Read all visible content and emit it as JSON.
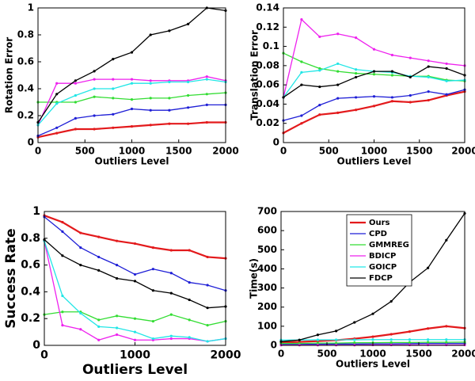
{
  "chart_data": [
    {
      "type": "line",
      "ylabel": "Rotation Error",
      "xlabel": "Outliers Level",
      "x": [
        0,
        200,
        400,
        600,
        800,
        1000,
        1200,
        1400,
        1600,
        1800,
        2000
      ],
      "xlim": [
        0,
        2000
      ],
      "xticks": [
        0,
        500,
        1000,
        1500,
        2000
      ],
      "ylim": [
        0,
        1
      ],
      "yticks": [
        0,
        0.2,
        0.4,
        0.6,
        0.8,
        1
      ],
      "series": [
        {
          "color": "#e31a1c",
          "values": [
            0.04,
            0.07,
            0.1,
            0.1,
            0.11,
            0.12,
            0.13,
            0.14,
            0.14,
            0.15,
            0.15
          ]
        },
        {
          "color": "#1f1fd6",
          "values": [
            0.05,
            0.11,
            0.18,
            0.2,
            0.21,
            0.25,
            0.24,
            0.24,
            0.26,
            0.28,
            0.28
          ]
        },
        {
          "color": "#33dd33",
          "values": [
            0.3,
            0.3,
            0.3,
            0.34,
            0.33,
            0.32,
            0.33,
            0.33,
            0.35,
            0.36,
            0.37
          ]
        },
        {
          "color": "#ee22ee",
          "values": [
            0.13,
            0.44,
            0.44,
            0.47,
            0.47,
            0.47,
            0.46,
            0.46,
            0.46,
            0.49,
            0.46
          ]
        },
        {
          "color": "#22e6e6",
          "values": [
            0.13,
            0.29,
            0.35,
            0.4,
            0.4,
            0.44,
            0.44,
            0.45,
            0.45,
            0.47,
            0.45
          ]
        },
        {
          "color": "#000000",
          "values": [
            0.15,
            0.36,
            0.46,
            0.53,
            0.62,
            0.67,
            0.8,
            0.83,
            0.88,
            1.0,
            0.98
          ]
        }
      ]
    },
    {
      "type": "line",
      "ylabel": "Translation Error",
      "xlabel": "Outliers Level",
      "x": [
        0,
        200,
        400,
        600,
        800,
        1000,
        1200,
        1400,
        1600,
        1800,
        2000
      ],
      "xlim": [
        0,
        2000
      ],
      "xticks": [
        0,
        500,
        1000,
        1500,
        2000
      ],
      "ylim": [
        0,
        0.14
      ],
      "yticks": [
        0,
        0.02,
        0.04,
        0.06,
        0.08,
        0.1,
        0.12,
        0.14
      ],
      "series": [
        {
          "color": "#e31a1c",
          "values": [
            0.01,
            0.02,
            0.029,
            0.031,
            0.034,
            0.038,
            0.043,
            0.042,
            0.044,
            0.049,
            0.053
          ]
        },
        {
          "color": "#1f1fd6",
          "values": [
            0.023,
            0.028,
            0.039,
            0.046,
            0.047,
            0.048,
            0.047,
            0.049,
            0.053,
            0.05,
            0.055
          ]
        },
        {
          "color": "#33dd33",
          "values": [
            0.093,
            0.084,
            0.077,
            0.074,
            0.072,
            0.071,
            0.07,
            0.069,
            0.069,
            0.065,
            0.064
          ]
        },
        {
          "color": "#ee22ee",
          "values": [
            0.047,
            0.128,
            0.11,
            0.113,
            0.109,
            0.097,
            0.091,
            0.088,
            0.085,
            0.082,
            0.08
          ]
        },
        {
          "color": "#22e6e6",
          "values": [
            0.047,
            0.073,
            0.075,
            0.082,
            0.076,
            0.074,
            0.073,
            0.069,
            0.068,
            0.064,
            0.065
          ]
        },
        {
          "color": "#000000",
          "values": [
            0.047,
            0.06,
            0.058,
            0.06,
            0.068,
            0.074,
            0.074,
            0.068,
            0.079,
            0.077,
            0.07
          ]
        }
      ]
    },
    {
      "type": "line",
      "ylabel": "Success Rate",
      "xlabel": "Outliers Level",
      "x": [
        0,
        200,
        400,
        600,
        800,
        1000,
        1200,
        1400,
        1600,
        1800,
        2000
      ],
      "xlim": [
        0,
        2000
      ],
      "xticks": [
        0,
        1000,
        2000
      ],
      "ylim": [
        0,
        1
      ],
      "yticks": [
        0,
        0.2,
        0.4,
        0.6,
        0.8,
        1
      ],
      "series": [
        {
          "color": "#e31a1c",
          "values": [
            0.97,
            0.92,
            0.84,
            0.81,
            0.78,
            0.76,
            0.73,
            0.71,
            0.71,
            0.66,
            0.65
          ]
        },
        {
          "color": "#1f1fd6",
          "values": [
            0.96,
            0.85,
            0.73,
            0.66,
            0.6,
            0.53,
            0.57,
            0.54,
            0.47,
            0.45,
            0.41
          ]
        },
        {
          "color": "#33dd33",
          "values": [
            0.23,
            0.25,
            0.25,
            0.19,
            0.22,
            0.2,
            0.18,
            0.23,
            0.19,
            0.15,
            0.18
          ]
        },
        {
          "color": "#ee22ee",
          "values": [
            0.78,
            0.15,
            0.12,
            0.04,
            0.08,
            0.04,
            0.04,
            0.05,
            0.05,
            0.03,
            0.05
          ]
        },
        {
          "color": "#22e6e6",
          "values": [
            0.78,
            0.37,
            0.24,
            0.14,
            0.13,
            0.1,
            0.05,
            0.07,
            0.06,
            0.03,
            0.05
          ]
        },
        {
          "color": "#000000",
          "values": [
            0.79,
            0.67,
            0.6,
            0.56,
            0.5,
            0.48,
            0.41,
            0.39,
            0.34,
            0.28,
            0.29
          ]
        }
      ]
    },
    {
      "type": "line",
      "ylabel": "Time(s)",
      "xlabel": "Outliers Level",
      "x": [
        0,
        200,
        400,
        600,
        800,
        1000,
        1200,
        1400,
        1600,
        1800,
        2000
      ],
      "xlim": [
        0,
        2000
      ],
      "xticks": [
        0,
        500,
        1000,
        1500,
        2000
      ],
      "ylim": [
        0,
        700
      ],
      "yticks": [
        0,
        100,
        200,
        300,
        400,
        500,
        600,
        700
      ],
      "legend": "upper center",
      "series": [
        {
          "name": "Ours",
          "color": "#e31a1c",
          "values": [
            15,
            18,
            22,
            27,
            35,
            45,
            58,
            72,
            88,
            100,
            90
          ]
        },
        {
          "name": "CPD",
          "color": "#1f1fd6",
          "values": [
            5,
            5,
            6,
            7,
            7,
            8,
            8,
            9,
            10,
            10,
            10
          ]
        },
        {
          "name": "GMMREG",
          "color": "#33dd33",
          "values": [
            10,
            10,
            12,
            12,
            14,
            14,
            15,
            15,
            16,
            16,
            17
          ]
        },
        {
          "name": "BDICP",
          "color": "#ee22ee",
          "values": [
            1,
            1,
            1,
            1,
            1,
            2,
            2,
            2,
            2,
            2,
            2
          ]
        },
        {
          "name": "GOICP",
          "color": "#22e6e6",
          "values": [
            28,
            28,
            29,
            29,
            29,
            30,
            30,
            30,
            30,
            30,
            30
          ]
        },
        {
          "name": "FDCP",
          "color": "#000000",
          "values": [
            20,
            28,
            55,
            75,
            120,
            165,
            230,
            330,
            405,
            550,
            690
          ]
        }
      ]
    }
  ]
}
